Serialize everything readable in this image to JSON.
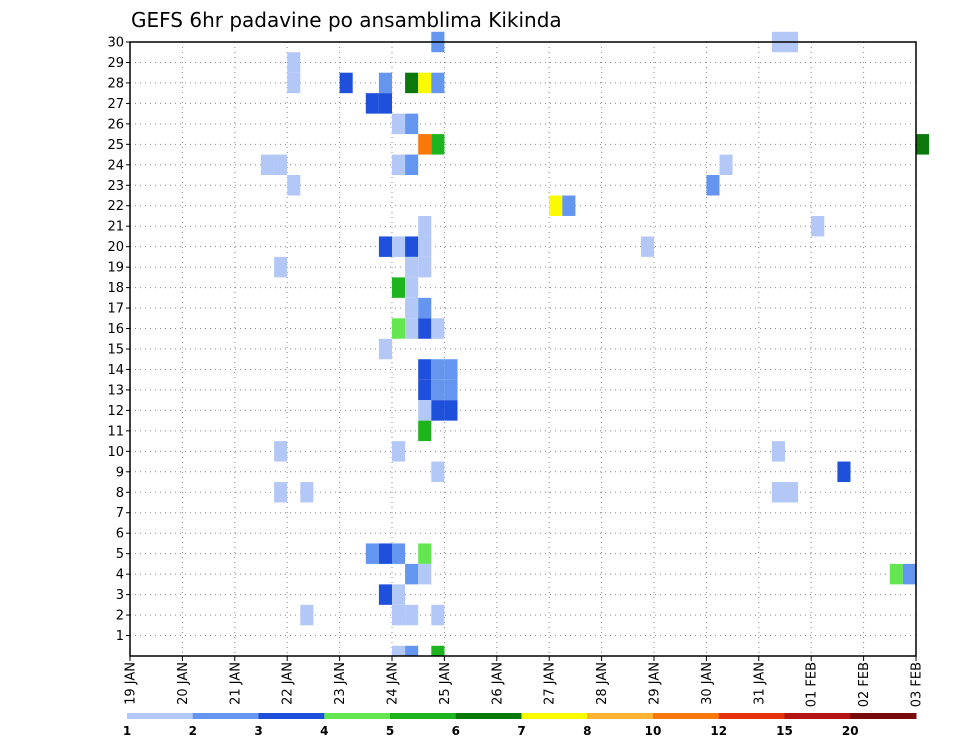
{
  "chart_data": {
    "type": "heatmap",
    "title": "GEFS 6hr padavine po ansamblima Kikinda",
    "xlabel": "",
    "ylabel": "",
    "x_ticks": [
      "19 JAN",
      "20 JAN",
      "21 JAN",
      "22 JAN",
      "23 JAN",
      "24 JAN",
      "25 JAN",
      "26 JAN",
      "27 JAN",
      "28 JAN",
      "29 JAN",
      "30 JAN",
      "31 JAN",
      "01 FEB",
      "02 FEB",
      "03 FEB"
    ],
    "y_ticks": [
      "1",
      "2",
      "3",
      "4",
      "5",
      "6",
      "7",
      "8",
      "9",
      "10",
      "11",
      "12",
      "13",
      "14",
      "15",
      "16",
      "17",
      "18",
      "19",
      "20",
      "21",
      "22",
      "23",
      "24",
      "25",
      "26",
      "27",
      "28",
      "29",
      "30"
    ],
    "x_range_days": [
      0,
      15
    ],
    "y_range": [
      0,
      30
    ],
    "time_step_hours": 6,
    "grid": "dotted",
    "colorbar": {
      "labels": [
        "1",
        "2",
        "3",
        "4",
        "5",
        "6",
        "7",
        "8",
        "10",
        "12",
        "15",
        "20"
      ],
      "colors": [
        "#b4c8f8",
        "#6496f0",
        "#1e50dc",
        "#64e650",
        "#1eb41e",
        "#0a780a",
        "#fafa00",
        "#fab432",
        "#fa780a",
        "#e6320a",
        "#b41414",
        "#780a0a"
      ]
    },
    "cells": [
      {
        "member": 30,
        "step": 23,
        "value": 2
      },
      {
        "member": 30,
        "step": 49,
        "value": 1
      },
      {
        "member": 30,
        "step": 50,
        "value": 1
      },
      {
        "member": 29,
        "step": 12,
        "value": 1
      },
      {
        "member": 28,
        "step": 12,
        "value": 1
      },
      {
        "member": 28,
        "step": 16,
        "value": 3
      },
      {
        "member": 28,
        "step": 19,
        "value": 2
      },
      {
        "member": 28,
        "step": 21,
        "value": 6
      },
      {
        "member": 28,
        "step": 22,
        "value": 7
      },
      {
        "member": 28,
        "step": 23,
        "value": 2
      },
      {
        "member": 27,
        "step": 18,
        "value": 3
      },
      {
        "member": 27,
        "step": 19,
        "value": 3
      },
      {
        "member": 26,
        "step": 20,
        "value": 1
      },
      {
        "member": 26,
        "step": 21,
        "value": 2
      },
      {
        "member": 25,
        "step": 22,
        "value": 10
      },
      {
        "member": 25,
        "step": 23,
        "value": 5
      },
      {
        "member": 25,
        "step": 60,
        "value": 6
      },
      {
        "member": 24,
        "step": 10,
        "value": 1
      },
      {
        "member": 24,
        "step": 11,
        "value": 1
      },
      {
        "member": 24,
        "step": 20,
        "value": 1
      },
      {
        "member": 24,
        "step": 21,
        "value": 2
      },
      {
        "member": 24,
        "step": 45,
        "value": 1
      },
      {
        "member": 23,
        "step": 12,
        "value": 1
      },
      {
        "member": 23,
        "step": 44,
        "value": 2
      },
      {
        "member": 22,
        "step": 32,
        "value": 7
      },
      {
        "member": 22,
        "step": 33,
        "value": 2
      },
      {
        "member": 21,
        "step": 22,
        "value": 1
      },
      {
        "member": 21,
        "step": 52,
        "value": 1
      },
      {
        "member": 20,
        "step": 19,
        "value": 3
      },
      {
        "member": 20,
        "step": 20,
        "value": 1
      },
      {
        "member": 20,
        "step": 21,
        "value": 3
      },
      {
        "member": 20,
        "step": 22,
        "value": 1
      },
      {
        "member": 20,
        "step": 39,
        "value": 1
      },
      {
        "member": 19,
        "step": 11,
        "value": 1
      },
      {
        "member": 19,
        "step": 21,
        "value": 1
      },
      {
        "member": 19,
        "step": 22,
        "value": 1
      },
      {
        "member": 18,
        "step": 20,
        "value": 5
      },
      {
        "member": 18,
        "step": 21,
        "value": 1
      },
      {
        "member": 17,
        "step": 21,
        "value": 1
      },
      {
        "member": 17,
        "step": 22,
        "value": 2
      },
      {
        "member": 16,
        "step": 20,
        "value": 4
      },
      {
        "member": 16,
        "step": 21,
        "value": 1
      },
      {
        "member": 16,
        "step": 22,
        "value": 3
      },
      {
        "member": 16,
        "step": 23,
        "value": 1
      },
      {
        "member": 15,
        "step": 19,
        "value": 1
      },
      {
        "member": 14,
        "step": 22,
        "value": 3
      },
      {
        "member": 14,
        "step": 23,
        "value": 2
      },
      {
        "member": 14,
        "step": 24,
        "value": 2
      },
      {
        "member": 13,
        "step": 22,
        "value": 3
      },
      {
        "member": 13,
        "step": 23,
        "value": 2
      },
      {
        "member": 13,
        "step": 24,
        "value": 2
      },
      {
        "member": 12,
        "step": 22,
        "value": 1
      },
      {
        "member": 12,
        "step": 23,
        "value": 3
      },
      {
        "member": 12,
        "step": 24,
        "value": 3
      },
      {
        "member": 11,
        "step": 22,
        "value": 5
      },
      {
        "member": 10,
        "step": 11,
        "value": 1
      },
      {
        "member": 10,
        "step": 20,
        "value": 1
      },
      {
        "member": 10,
        "step": 49,
        "value": 1
      },
      {
        "member": 9,
        "step": 23,
        "value": 1
      },
      {
        "member": 9,
        "step": 54,
        "value": 3
      },
      {
        "member": 8,
        "step": 11,
        "value": 1
      },
      {
        "member": 8,
        "step": 13,
        "value": 1
      },
      {
        "member": 8,
        "step": 49,
        "value": 1
      },
      {
        "member": 8,
        "step": 50,
        "value": 1
      },
      {
        "member": 5,
        "step": 18,
        "value": 2
      },
      {
        "member": 5,
        "step": 19,
        "value": 3
      },
      {
        "member": 5,
        "step": 20,
        "value": 2
      },
      {
        "member": 5,
        "step": 22,
        "value": 4
      },
      {
        "member": 4,
        "step": 21,
        "value": 2
      },
      {
        "member": 4,
        "step": 22,
        "value": 1
      },
      {
        "member": 4,
        "step": 58,
        "value": 4
      },
      {
        "member": 4,
        "step": 59,
        "value": 2
      },
      {
        "member": 3,
        "step": 19,
        "value": 3
      },
      {
        "member": 3,
        "step": 20,
        "value": 1
      },
      {
        "member": 2,
        "step": 13,
        "value": 1
      },
      {
        "member": 2,
        "step": 20,
        "value": 1
      },
      {
        "member": 2,
        "step": 21,
        "value": 1
      },
      {
        "member": 2,
        "step": 23,
        "value": 1
      },
      {
        "member": 0,
        "step": 20,
        "value": 1
      },
      {
        "member": 0,
        "step": 21,
        "value": 2
      },
      {
        "member": 0,
        "step": 23,
        "value": 5
      }
    ]
  }
}
